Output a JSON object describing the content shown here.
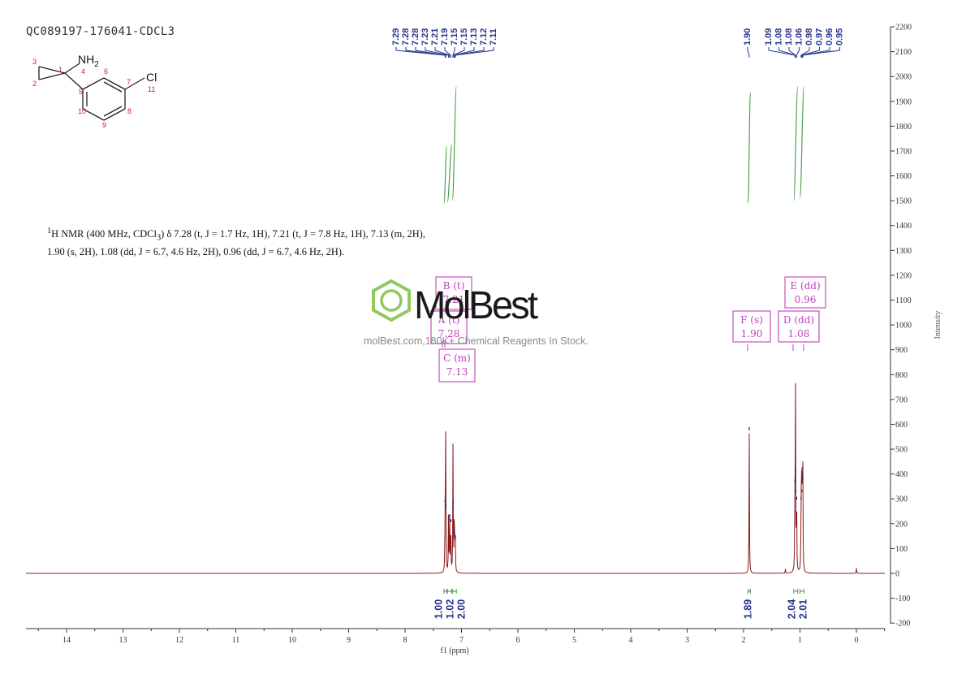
{
  "sample_id": "QC089197-176041-CDCL3",
  "nmr_description": {
    "nucleus_sup": "1",
    "head": "H NMR (400 MHz, CDCl",
    "sub": "3",
    "tail": ") δ 7.28 (t, J = 1.7 Hz, 1H), 7.21 (t, J = 7.8 Hz, 1H), 7.13 (m, 2H), 1.90 (s, 2H), 1.08 (dd, J = 6.7, 4.6 Hz, 2H), 0.96 (dd, J = 6.7, 4.6 Hz, 2H)."
  },
  "watermark": {
    "logo_text": "MolBest",
    "tagline": "molBest.com,180K+ Chemical Reagents In Stock."
  },
  "structure": {
    "amine_label": "NH",
    "amine_sub": "2",
    "chloro_label": "Cl",
    "atom_numbers": [
      "1",
      "2",
      "3",
      "4",
      "5",
      "6",
      "7",
      "8",
      "9",
      "10",
      "11"
    ]
  },
  "colors": {
    "spectrum": "#8b1a1a",
    "integral": "#3f9a3f",
    "peak_label": "#26348e",
    "annotation": "#c040c0",
    "axis": "#333333",
    "structure_numbers": "#cc2222",
    "logo_green": "#7bc043"
  },
  "chart_data": {
    "type": "line",
    "title": "",
    "xlabel": "f1 (ppm)",
    "ylabel": "Intensity",
    "x_reversed": true,
    "xlim": [
      14.75,
      -0.5
    ],
    "ylim": [
      -200,
      2200
    ],
    "x_ticks": [
      14,
      13,
      12,
      11,
      10,
      9,
      8,
      7,
      6,
      5,
      4,
      3,
      2,
      1,
      0
    ],
    "y_ticks": [
      2200,
      2100,
      2000,
      1900,
      1800,
      1700,
      1600,
      1500,
      1400,
      1300,
      1200,
      1100,
      1000,
      900,
      800,
      700,
      600,
      500,
      400,
      300,
      200,
      100,
      0,
      -100,
      -200
    ],
    "peaks": [
      {
        "ppm": 7.29,
        "height": 290
      },
      {
        "ppm": 7.28,
        "height": 270
      },
      {
        "ppm": 7.28,
        "height": 265
      },
      {
        "ppm": 7.23,
        "height": 220
      },
      {
        "ppm": 7.21,
        "height": 230
      },
      {
        "ppm": 7.19,
        "height": 210
      },
      {
        "ppm": 7.15,
        "height": 285
      },
      {
        "ppm": 7.15,
        "height": 260
      },
      {
        "ppm": 7.13,
        "height": 170
      },
      {
        "ppm": 7.12,
        "height": 150
      },
      {
        "ppm": 7.11,
        "height": 145
      },
      {
        "ppm": 1.9,
        "height": 580
      },
      {
        "ppm": 1.09,
        "height": 370
      },
      {
        "ppm": 1.08,
        "height": 410
      },
      {
        "ppm": 1.08,
        "height": 330
      },
      {
        "ppm": 1.06,
        "height": 300
      },
      {
        "ppm": 0.98,
        "height": 300
      },
      {
        "ppm": 0.97,
        "height": 330
      },
      {
        "ppm": 0.96,
        "height": 420
      },
      {
        "ppm": 0.95,
        "height": 380
      },
      {
        "ppm": 1.26,
        "height": 18
      },
      {
        "ppm": 0.0,
        "height": 22
      }
    ],
    "peak_labels_group1": [
      "7.29",
      "7.28",
      "7.28",
      "7.23",
      "7.21",
      "7.19",
      "7.15",
      "7.15",
      "7.13",
      "7.12",
      "7.11"
    ],
    "peak_labels_group2": [
      "1.90"
    ],
    "peak_labels_group3": [
      "1.09",
      "1.08",
      "1.08",
      "1.06",
      "0.98",
      "0.97",
      "0.96",
      "0.95"
    ],
    "integrals": [
      {
        "from": 7.31,
        "to": 7.26,
        "value": "1.00",
        "top": 1720,
        "bottom": 1490
      },
      {
        "from": 7.25,
        "to": 7.17,
        "value": "1.02",
        "top": 1725,
        "bottom": 1495
      },
      {
        "from": 7.16,
        "to": 7.09,
        "value": "2.00",
        "top": 1960,
        "bottom": 1500
      },
      {
        "from": 1.92,
        "to": 1.88,
        "value": "1.89",
        "top": 1935,
        "bottom": 1490
      },
      {
        "from": 1.11,
        "to": 1.04,
        "value": "2.04",
        "top": 1960,
        "bottom": 1500
      },
      {
        "from": 1.0,
        "to": 0.93,
        "value": "2.01",
        "top": 1960,
        "bottom": 1510
      }
    ],
    "multiplets": [
      {
        "label": "B (t)",
        "shift": "7.21"
      },
      {
        "label": "A (t)",
        "shift": "7.28"
      },
      {
        "label": "C (m)",
        "shift": "7.13"
      },
      {
        "label": "F (s)",
        "shift": "1.90"
      },
      {
        "label": "D (dd)",
        "shift": "1.08"
      },
      {
        "label": "E (dd)",
        "shift": "0.96"
      }
    ]
  }
}
